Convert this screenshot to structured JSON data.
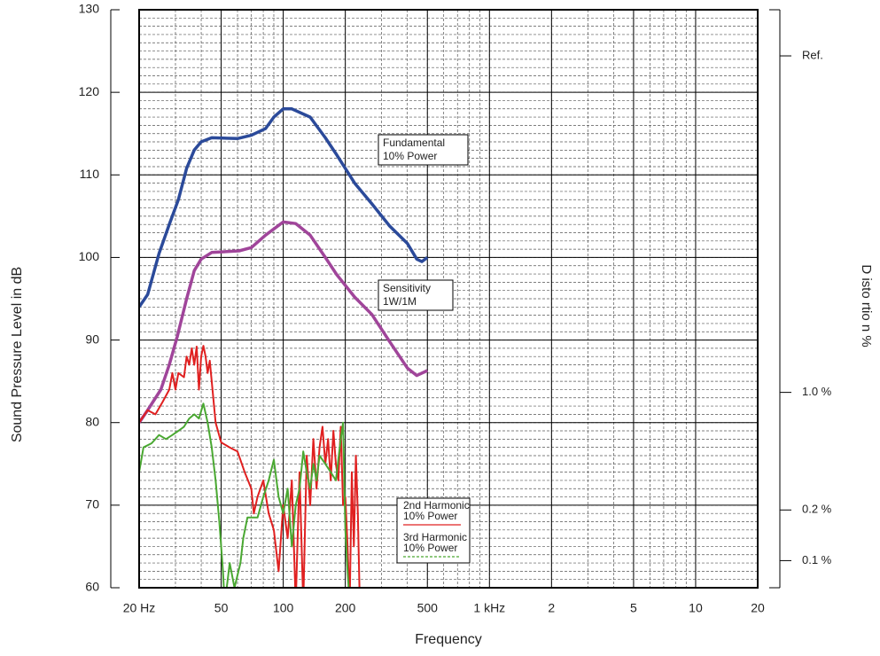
{
  "chart_data": {
    "type": "line",
    "xlabel": "Frequency",
    "ylabel": "Sound Pressure Level in dB",
    "y2label": "D isto rtio n %",
    "xlog": true,
    "xlim": [
      20,
      20000
    ],
    "xticks": [
      {
        "value": 20,
        "label": "20 Hz"
      },
      50,
      100,
      200,
      500,
      {
        "value": 1000,
        "label": "1 kHz"
      },
      {
        "value": 2000,
        "label": "2"
      },
      {
        "value": 5000,
        "label": "5"
      },
      {
        "value": 10000,
        "label": "10"
      },
      {
        "value": 20000,
        "label": "20"
      }
    ],
    "ylim": [
      60,
      130
    ],
    "yticks": [
      60,
      70,
      80,
      90,
      100,
      110,
      120,
      130
    ],
    "y2log": true,
    "y2lim": [
      0.069,
      188
    ],
    "y2ticks": [
      {
        "value": 100,
        "label": "Ref."
      },
      {
        "value": 1,
        "label": "1.0 %"
      },
      {
        "value": 0.2,
        "label": "0.2 %"
      },
      {
        "value": 0.1,
        "label": "0.1 %"
      }
    ],
    "grid": true,
    "series": [
      {
        "label": [
          "Fundamental",
          "10% Power"
        ],
        "color": "#2b4a9a",
        "x": [
          20,
          22,
          25,
          28,
          31,
          34,
          37,
          40,
          45,
          60,
          70,
          82,
          90,
          100,
          110,
          135,
          160,
          182,
          222,
          269,
          328,
          400,
          444,
          470,
          500
        ],
        "values": [
          94,
          95.5,
          100.5,
          104,
          107,
          110.8,
          113,
          114,
          114.5,
          114.4,
          114.8,
          115.6,
          117,
          118,
          118,
          117,
          114.5,
          112.4,
          109,
          106.5,
          103.8,
          101.7,
          99.8,
          99.5,
          100
        ]
      },
      {
        "label": [
          "Sensitivity",
          "1W/1M"
        ],
        "color": "#a0459a",
        "x": [
          20,
          22,
          25.5,
          28,
          30.6,
          34,
          37,
          40,
          45,
          61,
          70,
          82,
          100,
          115,
          135,
          160,
          182,
          222,
          269,
          328,
          400,
          444,
          500
        ],
        "values": [
          80,
          81.5,
          84,
          87,
          90.4,
          95,
          98.4,
          99.8,
          100.6,
          100.8,
          101.2,
          102.7,
          104.3,
          104.1,
          102.7,
          100,
          97.9,
          95.2,
          93.1,
          89.8,
          86.6,
          85.7,
          86.3
        ]
      },
      {
        "label": [
          "2nd Harmonic",
          "10% Power"
        ],
        "color": "#e02020",
        "x": [
          20,
          22,
          24,
          26,
          28,
          29,
          30,
          31,
          33,
          34,
          35,
          36,
          37,
          38,
          39,
          40,
          41,
          42,
          43,
          44,
          45,
          47,
          50,
          55,
          60,
          65,
          70,
          72,
          75,
          80,
          85,
          90,
          95,
          100,
          105,
          110,
          115,
          120,
          125,
          130,
          135,
          140,
          145,
          150,
          155,
          160,
          165,
          170,
          175,
          180,
          185,
          190,
          195,
          200,
          205,
          210,
          215,
          220,
          225,
          230,
          235
        ],
        "values": [
          80,
          81.5,
          81,
          82.5,
          84,
          86,
          84,
          86,
          85.5,
          88,
          87,
          89,
          87,
          89.2,
          84,
          88,
          89.3,
          88,
          86,
          87.5,
          85,
          80,
          77.6,
          77,
          76.5,
          74,
          72,
          69,
          71,
          73,
          69,
          67,
          62,
          70,
          66,
          73,
          58,
          74,
          58,
          76,
          70,
          78,
          72,
          77,
          79.5,
          75,
          78,
          73,
          79,
          75,
          73,
          79.5,
          70,
          71,
          65,
          58,
          74,
          65,
          76,
          69,
          58
        ]
      },
      {
        "label": [
          "3rd Harmonic",
          "10% Power"
        ],
        "color": "#4aa832",
        "dashed_legend": true,
        "x": [
          20,
          21,
          23,
          25,
          27,
          29,
          31,
          33,
          35,
          37,
          39,
          41,
          43,
          45,
          47,
          49,
          51,
          52,
          55,
          58,
          62,
          64,
          67,
          75,
          80,
          85,
          90,
          95,
          100,
          105,
          110,
          115,
          120,
          125,
          130,
          135,
          140,
          145,
          150,
          160,
          170,
          180,
          190,
          195,
          200,
          205,
          210
        ],
        "values": [
          74,
          77,
          77.5,
          78.5,
          78,
          78.5,
          79,
          79.5,
          80.5,
          81,
          80.5,
          82.3,
          80,
          77,
          73,
          68,
          62,
          58,
          63,
          60,
          63,
          66,
          68.5,
          68.5,
          71,
          73,
          75.5,
          71,
          69,
          72,
          65,
          70,
          72,
          76.5,
          74,
          72,
          75,
          73,
          76,
          75,
          74,
          73,
          78,
          80,
          67,
          62,
          58
        ]
      }
    ]
  }
}
